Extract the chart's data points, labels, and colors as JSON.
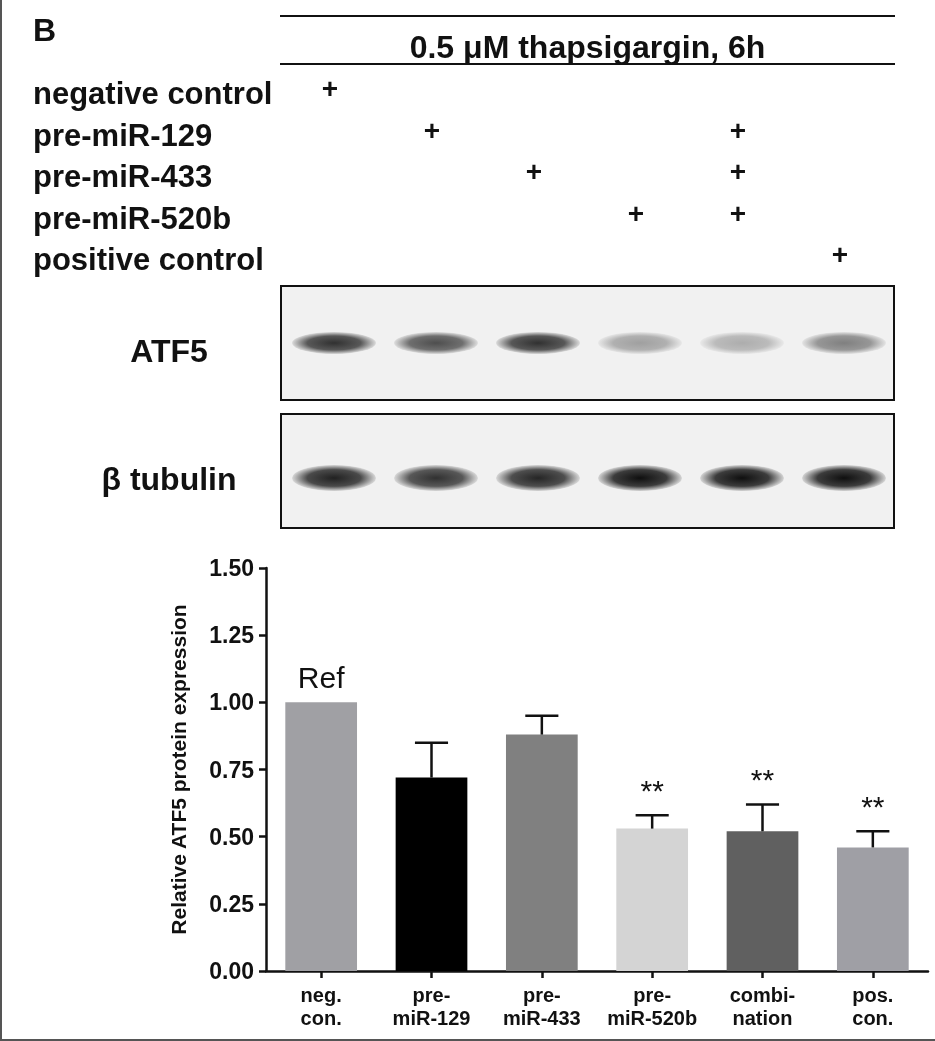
{
  "chart_data": [
    {
      "type": "other",
      "title": "0.5 μM thapsigargin, 6h",
      "y_categories": [
        "negative control",
        "pre-miR-129",
        "pre-miR-433",
        "pre-miR-520b",
        "positive control"
      ],
      "cell_labels": [
        [
          "+",
          null,
          null,
          null,
          null,
          null
        ],
        [
          null,
          "+",
          null,
          null,
          "+",
          null
        ],
        [
          null,
          null,
          "+",
          null,
          "+",
          null
        ],
        [
          null,
          null,
          null,
          "+",
          "+",
          null
        ],
        [
          null,
          null,
          null,
          null,
          null,
          "+"
        ]
      ],
      "annotations": [
        "B",
        "ATF5",
        "β tubulin"
      ]
    },
    {
      "type": "bar",
      "ylabel": "Relative ATF5 protein expression",
      "categories": [
        "neg.\ncon.",
        "pre-\nmiR-129",
        "pre-\nmiR-433",
        "pre-\nmiR-520b",
        "combi-\nnation",
        "pos.\ncon."
      ],
      "values": [
        1.0,
        0.72,
        0.88,
        0.53,
        0.52,
        0.46
      ],
      "value_labels": [
        "Ref",
        null,
        null,
        "**",
        "**",
        "**"
      ],
      "colors": [
        "#a0a0a4",
        "#000000",
        "#808080",
        "#d4d4d4",
        "#606060",
        "#9f9fa5"
      ],
      "errors": [
        null,
        [
          0.72,
          0.85
        ],
        [
          0.88,
          0.95
        ],
        [
          0.53,
          0.58
        ],
        [
          0.52,
          0.62
        ],
        [
          0.46,
          0.52
        ]
      ],
      "ylim": [
        0,
        1.5
      ],
      "yticks": [
        {
          "value": 0,
          "label": "0.00"
        },
        0.25,
        {
          "value": 0.5,
          "label": "0.50"
        },
        0.75,
        {
          "value": 1,
          "label": "1.00"
        },
        1.25,
        {
          "value": 1.5,
          "label": "1.50"
        }
      ]
    }
  ]
}
